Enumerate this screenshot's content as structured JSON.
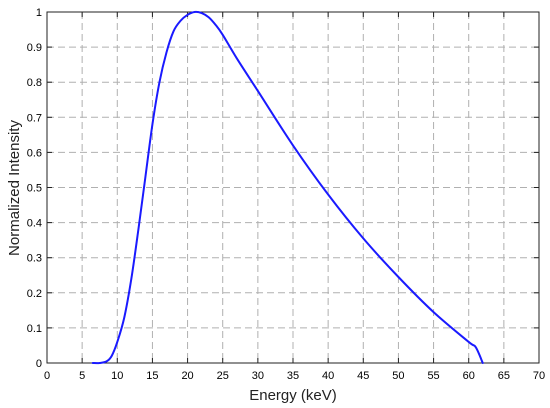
{
  "chart_data": {
    "type": "line",
    "title": "",
    "xlabel": "Energy (keV)",
    "ylabel": "Normalized Intensity",
    "xlim": [
      0,
      70
    ],
    "ylim": [
      0,
      1
    ],
    "xticks": [
      "0",
      "5",
      "10",
      "15",
      "20",
      "25",
      "30",
      "35",
      "40",
      "45",
      "50",
      "55",
      "60",
      "65",
      "70"
    ],
    "yticks": [
      "0",
      "0.1",
      "0.2",
      "0.3",
      "0.4",
      "0.5",
      "0.6",
      "0.7",
      "0.8",
      "0.9",
      "1"
    ],
    "grid": true,
    "line_color": "#1a1aff",
    "series": [
      {
        "x": [
          6.5,
          7.5,
          8.5,
          9.2,
          10.0,
          11.0,
          12.0,
          13.0,
          14.0,
          15.0,
          16.0,
          17.0,
          18.0,
          19.0,
          20.0,
          21.0,
          22.0,
          23.0,
          24.0,
          25.0,
          27.0,
          30.0,
          35.0,
          40.0,
          45.0,
          50.0,
          55.0,
          60.0,
          61.0,
          62.0
        ],
        "y": [
          0.0,
          0.0,
          0.005,
          0.02,
          0.06,
          0.13,
          0.24,
          0.38,
          0.53,
          0.68,
          0.8,
          0.885,
          0.945,
          0.975,
          0.992,
          1.0,
          0.997,
          0.985,
          0.963,
          0.935,
          0.868,
          0.775,
          0.62,
          0.48,
          0.355,
          0.245,
          0.145,
          0.06,
          0.045,
          0.0
        ]
      }
    ]
  }
}
